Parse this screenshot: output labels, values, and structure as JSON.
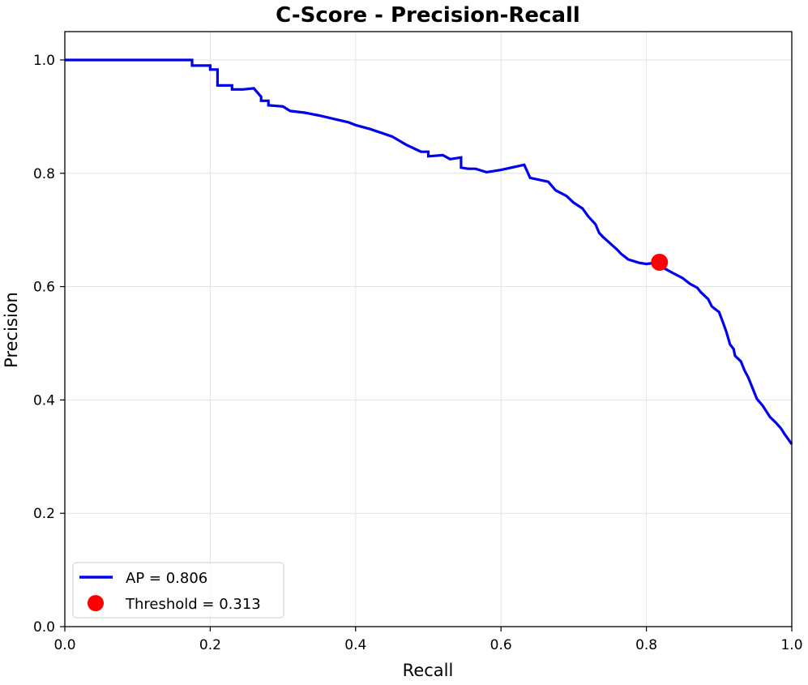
{
  "chart_data": {
    "type": "line",
    "title": "C-Score - Precision-Recall",
    "xlabel": "Recall",
    "ylabel": "Precision",
    "xlim": [
      0.0,
      1.0
    ],
    "ylim": [
      0.0,
      1.05
    ],
    "xticks": [
      {
        "value": 0.0,
        "label": "0.0"
      },
      {
        "value": 0.2,
        "label": "0.2"
      },
      {
        "value": 0.4,
        "label": "0.4"
      },
      {
        "value": 0.6,
        "label": "0.6"
      },
      {
        "value": 0.8,
        "label": "0.8"
      },
      {
        "value": 1.0,
        "label": "1.0"
      }
    ],
    "yticks": [
      {
        "value": 0.0,
        "label": "0.0"
      },
      {
        "value": 0.2,
        "label": "0.2"
      },
      {
        "value": 0.4,
        "label": "0.4"
      },
      {
        "value": 0.6,
        "label": "0.6"
      },
      {
        "value": 0.8,
        "label": "0.8"
      },
      {
        "value": 1.0,
        "label": "1.0"
      }
    ],
    "grid": true,
    "legend_position": "lower-left",
    "series": [
      {
        "name": "AP = 0.806",
        "color": "#0000ee",
        "x": [
          0.0,
          0.175,
          0.175,
          0.2,
          0.2,
          0.21,
          0.21,
          0.23,
          0.23,
          0.245,
          0.26,
          0.27,
          0.27,
          0.28,
          0.28,
          0.3,
          0.31,
          0.33,
          0.35,
          0.37,
          0.39,
          0.4,
          0.42,
          0.45,
          0.47,
          0.49,
          0.5,
          0.5,
          0.52,
          0.53,
          0.545,
          0.545,
          0.555,
          0.565,
          0.58,
          0.6,
          0.632,
          0.64,
          0.665,
          0.675,
          0.69,
          0.7,
          0.712,
          0.72,
          0.73,
          0.735,
          0.74,
          0.76,
          0.765,
          0.775,
          0.79,
          0.8,
          0.818,
          0.825,
          0.835,
          0.85,
          0.86,
          0.87,
          0.875,
          0.885,
          0.89,
          0.9,
          0.905,
          0.91,
          0.915,
          0.92,
          0.922,
          0.93,
          0.935,
          0.94,
          0.952,
          0.96,
          0.962,
          0.97,
          0.978,
          0.985,
          0.99,
          1.0
        ],
        "y": [
          1.0,
          1.0,
          0.99,
          0.99,
          0.983,
          0.983,
          0.955,
          0.955,
          0.948,
          0.948,
          0.95,
          0.935,
          0.928,
          0.928,
          0.92,
          0.918,
          0.91,
          0.907,
          0.902,
          0.896,
          0.89,
          0.885,
          0.878,
          0.865,
          0.85,
          0.838,
          0.838,
          0.83,
          0.832,
          0.825,
          0.828,
          0.81,
          0.808,
          0.808,
          0.802,
          0.806,
          0.815,
          0.792,
          0.785,
          0.77,
          0.76,
          0.748,
          0.738,
          0.724,
          0.71,
          0.695,
          0.688,
          0.665,
          0.658,
          0.648,
          0.642,
          0.64,
          0.643,
          0.632,
          0.625,
          0.615,
          0.605,
          0.598,
          0.59,
          0.578,
          0.565,
          0.555,
          0.538,
          0.52,
          0.498,
          0.49,
          0.478,
          0.468,
          0.452,
          0.44,
          0.402,
          0.39,
          0.386,
          0.37,
          0.36,
          0.35,
          0.34,
          0.322
        ]
      }
    ],
    "markers": [
      {
        "name": "Threshold = 0.313",
        "color": "#ff0000",
        "x": 0.818,
        "y": 0.643
      }
    ]
  }
}
